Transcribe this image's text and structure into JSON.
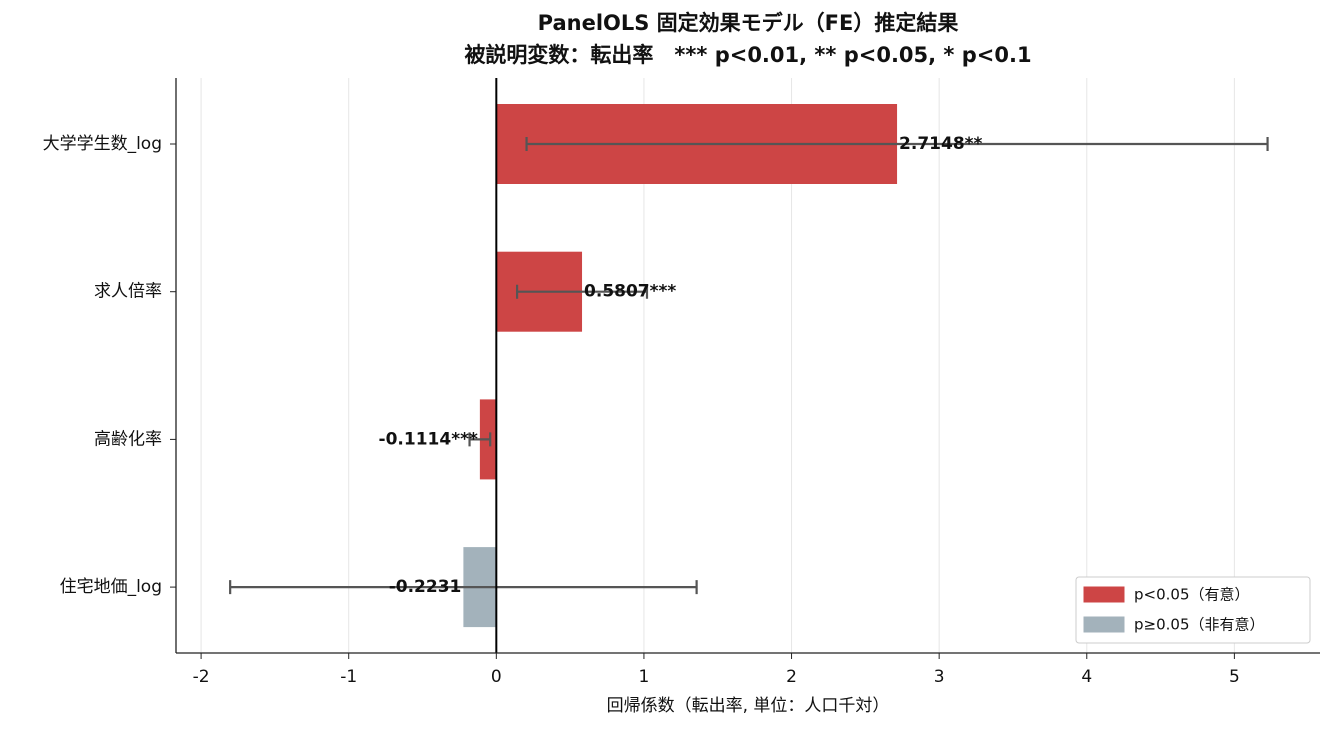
{
  "chart_data": {
    "type": "barh",
    "title": "PanelOLS 固定効果モデル（FE）推定結果",
    "subtitle": "被説明変数：転出率　*** p<0.01, ** p<0.05, * p<0.1",
    "x_label": "回帰係数（転出率, 単位：人口千対）",
    "categories": [
      "大学学生数_log",
      "求人倍率",
      "高齢化率",
      "住宅地価_log"
    ],
    "values": [
      2.7148,
      0.5807,
      -0.1114,
      -0.2231
    ],
    "value_labels": [
      "2.7148**",
      "0.5807***",
      "-0.1114***",
      "-0.2231"
    ],
    "errors": [
      2.51,
      0.44,
      0.07,
      1.58
    ],
    "colors": [
      "#cd4545",
      "#cd4545",
      "#cd4545",
      "#a3b2bb"
    ],
    "legend": [
      {
        "name": "p<0.05（有意）",
        "color": "#cd4545"
      },
      {
        "name": "p≥0.05（非有意）",
        "color": "#a3b2bb"
      }
    ],
    "legend_position": "lower right",
    "xlim": [
      -2.17,
      5.58
    ],
    "xticks": [
      -2,
      -1,
      0,
      1,
      2,
      3,
      4,
      5
    ],
    "grid": true
  }
}
